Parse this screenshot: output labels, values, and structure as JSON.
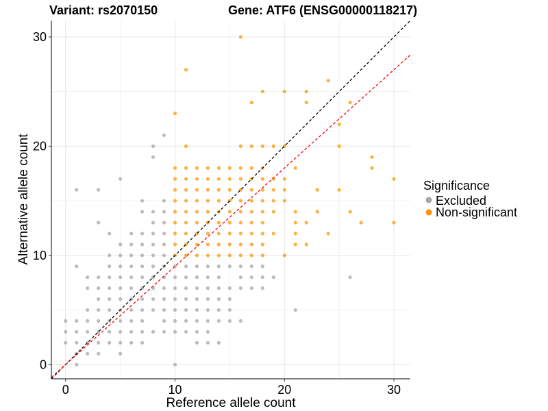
{
  "chart_data": {
    "type": "scatter",
    "title_left": "Variant: rs2070150",
    "title_right": "Gene: ATF6 (ENSG00000118217)",
    "xlabel": "Reference allele count",
    "ylabel": "Alternative allele count",
    "xlim": [
      -1.3,
      31.5
    ],
    "ylim": [
      -1.3,
      31.5
    ],
    "x_ticks": [
      0,
      10,
      20,
      30
    ],
    "y_ticks": [
      0,
      10,
      20,
      30
    ],
    "grid": true,
    "legend": {
      "title": "Significance",
      "position": "right",
      "entries": [
        {
          "label": "Excluded",
          "color": "#a6a6a6"
        },
        {
          "label": "Non-significant",
          "color": "#ff9500"
        }
      ]
    },
    "reference_lines": [
      {
        "style": "dashed",
        "color": "#000000",
        "slope": 1,
        "intercept": 0
      },
      {
        "style": "dashed",
        "color": "#ff0000",
        "slope": 0.9,
        "intercept": 0
      }
    ],
    "series": [
      {
        "name": "Excluded",
        "color": "#a6a6a6",
        "points": [
          [
            0,
            4
          ],
          [
            0,
            3
          ],
          [
            0,
            2
          ],
          [
            1,
            4
          ],
          [
            1,
            3
          ],
          [
            1,
            2
          ],
          [
            1,
            1
          ],
          [
            1,
            0
          ],
          [
            1,
            9
          ],
          [
            1,
            16
          ],
          [
            2,
            4
          ],
          [
            2,
            3
          ],
          [
            2,
            2
          ],
          [
            2,
            1
          ],
          [
            2,
            5
          ],
          [
            2,
            7
          ],
          [
            2,
            8
          ],
          [
            3,
            16
          ],
          [
            3,
            13
          ],
          [
            3,
            8
          ],
          [
            3,
            7
          ],
          [
            3,
            6
          ],
          [
            3,
            5
          ],
          [
            3,
            4
          ],
          [
            3,
            3
          ],
          [
            3,
            2
          ],
          [
            3,
            1
          ],
          [
            4,
            10
          ],
          [
            4,
            9
          ],
          [
            4,
            8
          ],
          [
            4,
            7
          ],
          [
            4,
            6
          ],
          [
            4,
            5
          ],
          [
            4,
            4
          ],
          [
            4,
            3
          ],
          [
            4,
            2
          ],
          [
            4,
            12
          ],
          [
            5,
            17
          ],
          [
            5,
            11
          ],
          [
            5,
            10
          ],
          [
            5,
            9
          ],
          [
            5,
            8
          ],
          [
            5,
            7
          ],
          [
            5,
            6
          ],
          [
            5,
            5
          ],
          [
            5,
            4
          ],
          [
            5,
            3
          ],
          [
            5,
            2
          ],
          [
            5,
            1
          ],
          [
            6,
            12
          ],
          [
            6,
            11
          ],
          [
            6,
            10
          ],
          [
            6,
            9
          ],
          [
            6,
            8
          ],
          [
            6,
            7
          ],
          [
            6,
            6
          ],
          [
            6,
            5
          ],
          [
            6,
            4
          ],
          [
            6,
            3
          ],
          [
            6,
            2
          ],
          [
            7,
            15
          ],
          [
            7,
            14
          ],
          [
            7,
            12
          ],
          [
            7,
            11
          ],
          [
            7,
            10
          ],
          [
            7,
            9
          ],
          [
            7,
            8
          ],
          [
            7,
            7
          ],
          [
            7,
            6
          ],
          [
            7,
            5
          ],
          [
            7,
            4
          ],
          [
            7,
            3
          ],
          [
            7,
            2
          ],
          [
            8,
            20
          ],
          [
            8,
            19
          ],
          [
            8,
            14
          ],
          [
            8,
            13
          ],
          [
            8,
            12
          ],
          [
            8,
            11
          ],
          [
            8,
            10
          ],
          [
            8,
            9
          ],
          [
            8,
            8
          ],
          [
            8,
            7
          ],
          [
            8,
            6
          ],
          [
            8,
            5
          ],
          [
            8,
            3
          ],
          [
            9,
            21
          ],
          [
            9,
            15
          ],
          [
            9,
            14
          ],
          [
            9,
            13
          ],
          [
            9,
            12
          ],
          [
            9,
            11
          ],
          [
            9,
            10
          ],
          [
            9,
            9
          ],
          [
            9,
            8
          ],
          [
            9,
            7
          ],
          [
            9,
            6
          ],
          [
            9,
            5
          ],
          [
            9,
            4
          ],
          [
            9,
            3
          ],
          [
            10,
            9
          ],
          [
            10,
            8
          ],
          [
            10,
            7
          ],
          [
            10,
            6
          ],
          [
            10,
            5
          ],
          [
            10,
            4
          ],
          [
            10,
            3
          ],
          [
            10,
            0
          ],
          [
            11,
            9
          ],
          [
            11,
            8
          ],
          [
            11,
            7
          ],
          [
            11,
            6
          ],
          [
            11,
            5
          ],
          [
            11,
            4
          ],
          [
            11,
            3
          ],
          [
            12,
            9
          ],
          [
            12,
            8
          ],
          [
            12,
            7
          ],
          [
            12,
            6
          ],
          [
            12,
            5
          ],
          [
            12,
            4
          ],
          [
            12,
            3
          ],
          [
            12,
            2
          ],
          [
            13,
            9
          ],
          [
            13,
            8
          ],
          [
            13,
            7
          ],
          [
            13,
            6
          ],
          [
            13,
            5
          ],
          [
            13,
            4
          ],
          [
            13,
            3
          ],
          [
            13,
            2
          ],
          [
            14,
            9
          ],
          [
            14,
            8
          ],
          [
            14,
            7
          ],
          [
            14,
            6
          ],
          [
            14,
            5
          ],
          [
            14,
            4
          ],
          [
            14,
            2
          ],
          [
            15,
            9
          ],
          [
            15,
            7
          ],
          [
            15,
            6
          ],
          [
            15,
            5
          ],
          [
            15,
            4
          ],
          [
            16,
            9
          ],
          [
            16,
            8
          ],
          [
            16,
            7
          ],
          [
            16,
            4
          ],
          [
            17,
            9
          ],
          [
            17,
            8
          ],
          [
            17,
            7
          ],
          [
            18,
            9
          ],
          [
            18,
            8
          ],
          [
            18,
            7
          ],
          [
            19,
            8
          ],
          [
            21,
            5
          ],
          [
            26,
            8
          ]
        ]
      },
      {
        "name": "Non-significant",
        "color": "#ff9500",
        "points": [
          [
            10,
            23
          ],
          [
            10,
            18
          ],
          [
            10,
            17
          ],
          [
            10,
            16
          ],
          [
            10,
            15
          ],
          [
            10,
            14
          ],
          [
            10,
            13
          ],
          [
            10,
            12
          ],
          [
            10,
            11
          ],
          [
            10,
            10
          ],
          [
            11,
            27
          ],
          [
            11,
            20
          ],
          [
            11,
            18
          ],
          [
            11,
            17
          ],
          [
            11,
            16
          ],
          [
            11,
            15
          ],
          [
            11,
            14
          ],
          [
            11,
            13
          ],
          [
            11,
            12
          ],
          [
            11,
            11
          ],
          [
            11,
            10
          ],
          [
            12,
            18
          ],
          [
            12,
            17
          ],
          [
            12,
            16
          ],
          [
            12,
            15
          ],
          [
            12,
            14
          ],
          [
            12,
            13
          ],
          [
            12,
            12
          ],
          [
            12,
            11
          ],
          [
            12,
            10
          ],
          [
            13,
            18
          ],
          [
            13,
            17
          ],
          [
            13,
            16
          ],
          [
            13,
            15
          ],
          [
            13,
            14
          ],
          [
            13,
            13
          ],
          [
            13,
            12
          ],
          [
            13,
            11
          ],
          [
            13,
            10
          ],
          [
            14,
            18
          ],
          [
            14,
            17
          ],
          [
            14,
            16
          ],
          [
            14,
            15
          ],
          [
            14,
            14
          ],
          [
            14,
            13
          ],
          [
            14,
            12
          ],
          [
            14,
            11
          ],
          [
            14,
            10
          ],
          [
            15,
            18
          ],
          [
            15,
            17
          ],
          [
            15,
            16
          ],
          [
            15,
            15
          ],
          [
            15,
            14
          ],
          [
            15,
            13
          ],
          [
            15,
            12
          ],
          [
            15,
            11
          ],
          [
            15,
            10
          ],
          [
            16,
            30
          ],
          [
            16,
            20
          ],
          [
            16,
            18
          ],
          [
            16,
            17
          ],
          [
            16,
            16
          ],
          [
            16,
            15
          ],
          [
            16,
            14
          ],
          [
            16,
            13
          ],
          [
            16,
            12
          ],
          [
            16,
            11
          ],
          [
            16,
            10
          ],
          [
            17,
            24
          ],
          [
            17,
            20
          ],
          [
            17,
            18
          ],
          [
            17,
            17
          ],
          [
            17,
            16
          ],
          [
            17,
            15
          ],
          [
            17,
            14
          ],
          [
            17,
            13
          ],
          [
            17,
            12
          ],
          [
            17,
            11
          ],
          [
            17,
            10
          ],
          [
            18,
            25
          ],
          [
            18,
            20
          ],
          [
            18,
            18
          ],
          [
            18,
            17
          ],
          [
            18,
            16
          ],
          [
            18,
            15
          ],
          [
            18,
            14
          ],
          [
            18,
            13
          ],
          [
            18,
            12
          ],
          [
            18,
            11
          ],
          [
            18,
            10
          ],
          [
            19,
            20
          ],
          [
            19,
            17
          ],
          [
            19,
            16
          ],
          [
            19,
            15
          ],
          [
            19,
            14
          ],
          [
            19,
            12
          ],
          [
            20,
            25
          ],
          [
            20,
            20
          ],
          [
            20,
            17
          ],
          [
            20,
            16
          ],
          [
            20,
            15
          ],
          [
            20,
            10
          ],
          [
            21,
            18
          ],
          [
            21,
            14
          ],
          [
            21,
            13
          ],
          [
            21,
            12
          ],
          [
            21,
            11
          ],
          [
            22,
            25
          ],
          [
            22,
            24
          ],
          [
            22,
            13
          ],
          [
            22,
            11
          ],
          [
            23,
            16
          ],
          [
            23,
            14
          ],
          [
            24,
            26
          ],
          [
            24,
            12
          ],
          [
            25,
            22
          ],
          [
            25,
            20
          ],
          [
            25,
            16
          ],
          [
            26,
            24
          ],
          [
            26,
            14
          ],
          [
            27,
            13
          ],
          [
            28,
            19
          ],
          [
            28,
            18
          ],
          [
            30,
            17
          ],
          [
            30,
            13
          ]
        ]
      }
    ]
  }
}
